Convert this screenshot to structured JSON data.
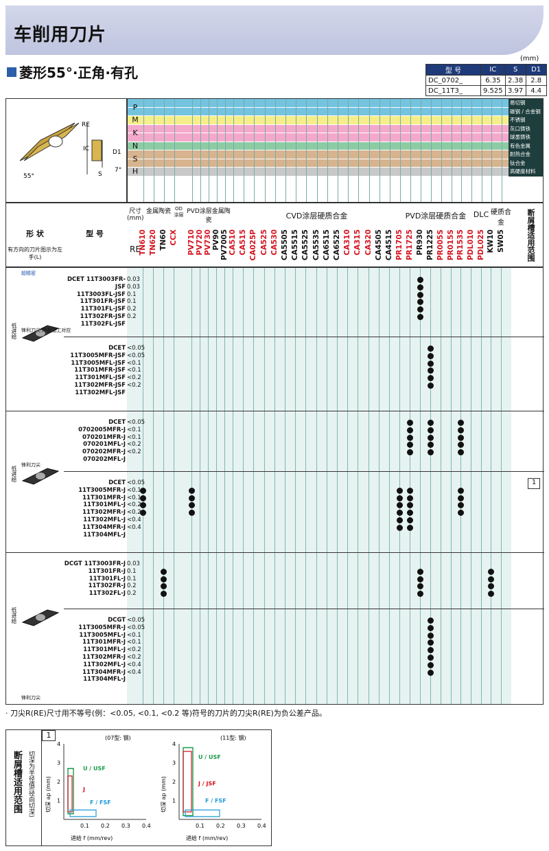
{
  "title": "车削用刀片",
  "subtitle": "菱形55°·正角·有孔",
  "unit": "(mm)",
  "spec_table": {
    "headers": [
      "型 号",
      "IC",
      "S",
      "D1"
    ],
    "rows": [
      [
        "DC_0702_",
        "6.35",
        "2.38",
        "2.8"
      ],
      [
        "DC_11T3_",
        "9.525",
        "3.97",
        "4.4"
      ]
    ]
  },
  "drawing_labels": {
    "re": "RE",
    "ic": "IC",
    "d1": "D1",
    "s": "S",
    "angle1": "55°",
    "angle2": "7°"
  },
  "materials": [
    {
      "code": "P",
      "names": [
        "易切钢",
        "碳钢 / 合金钢"
      ],
      "color": "#74c3df"
    },
    {
      "code": "M",
      "names": [
        "不锈钢"
      ],
      "color": "#f5ee8a"
    },
    {
      "code": "K",
      "names": [
        "灰口铸铁",
        "球墨铸铁"
      ],
      "color": "#f4a9cc"
    },
    {
      "code": "N",
      "names": [
        "有色金属"
      ],
      "color": "#8dcca3"
    },
    {
      "code": "S",
      "names": [
        "耐热合金",
        "钛合金"
      ],
      "color": "#d7b48f"
    },
    {
      "code": "H",
      "names": [
        "高硬度材料"
      ],
      "color": "#c8c8c8"
    }
  ],
  "header": {
    "shape": "形 状",
    "shape_note": "有方向的刀片图示为左手(L)",
    "model": "型 号",
    "size": "尺寸(mm)",
    "re": "RE",
    "categories": [
      "金属陶瓷",
      "OD涂层",
      "PVD涂层金属陶瓷",
      "CVD涂层硬质合金",
      "PVD涂层硬质合金",
      "DLC",
      "硬质合金"
    ],
    "last_col": "断屑槽适用范围",
    "grades": [
      "TN610",
      "TN620",
      "TN60",
      "CCX",
      "PV710",
      "PV720",
      "PV730",
      "PV90",
      "PV7005",
      "CA510",
      "CA515",
      "CA025P",
      "CA525",
      "CA530",
      "CA5505",
      "CA5515",
      "CA5525",
      "CA5535",
      "CA6515",
      "CA6525",
      "CA310",
      "CA315",
      "CA320",
      "CA4505",
      "CA4515",
      "PR1705",
      "PR1725",
      "PR930",
      "PR1225",
      "PR005S",
      "PR015S",
      "PR1535",
      "PDL010",
      "PDL025",
      "KW10",
      "SW05"
    ],
    "grade_colors": [
      "r",
      "r",
      "k",
      "r",
      "r",
      "r",
      "r",
      "k",
      "k",
      "r",
      "r",
      "r",
      "r",
      "r",
      "k",
      "k",
      "k",
      "k",
      "k",
      "k",
      "r",
      "r",
      "r",
      "k",
      "k",
      "r",
      "r",
      "k",
      "k",
      "r",
      "r",
      "r",
      "r",
      "r",
      "k",
      "k"
    ]
  },
  "groups": [
    {
      "speed": "低进给",
      "note_top": "超精密",
      "note_bottom": "锋利刀尖·精密加工对应",
      "family": "DCET",
      "codes": [
        "11T3003FR-JSF",
        "11T3003FL-JSF",
        "11T301FR-JSF",
        "11T301FL-JSF",
        "11T302FR-JSF",
        "11T302FL-JSF"
      ],
      "re": [
        "0.03",
        "0.03",
        "0.1",
        "0.1",
        "0.2",
        "0.2"
      ]
    },
    {
      "family": "DCET",
      "codes": [
        "11T3005MFR-JSF",
        "11T3005MFL-JSF",
        "11T301MFR-JSF",
        "11T301MFL-JSF",
        "11T302MFR-JSF",
        "11T302MFL-JSF"
      ],
      "re": [
        "<0.05",
        "<0.05",
        "<0.1",
        "<0.1",
        "<0.2",
        "<0.2"
      ]
    },
    {
      "speed": "低进给",
      "note_bottom": "锋利刀尖",
      "family": "DCET",
      "codes": [
        "0702005MFR-J",
        "070201MFR-J",
        "070201MFL-J",
        "070202MFR-J",
        "070202MFL-J"
      ],
      "re": [
        "<0.05",
        "<0.1",
        "<0.1",
        "<0.2",
        "<0.2"
      ]
    },
    {
      "family": "DCET",
      "codes": [
        "11T3005MFR-J",
        "11T301MFR-J",
        "11T301MFL-J",
        "11T302MFR-J",
        "11T302MFL-J",
        "11T304MFR-J",
        "11T304MFL-J"
      ],
      "re": [
        "<0.05",
        "<0.1",
        "<0.1",
        "<0.2",
        "<0.2",
        "<0.4",
        "<0.4"
      ]
    },
    {
      "speed": "低进给",
      "family": "DCGT",
      "codes": [
        "11T3003FR-J",
        "11T301FR-J",
        "11T301FL-J",
        "11T302FR-J",
        "11T302FL-J"
      ],
      "re": [
        "0.03",
        "0.1",
        "0.1",
        "0.2",
        "0.2"
      ]
    },
    {
      "note_bottom": "锋利刀尖",
      "family": "DCGT",
      "codes": [
        "11T3005MFR-J",
        "11T3005MFL-J",
        "11T301MFR-J",
        "11T301MFL-J",
        "11T302MFR-J",
        "11T302MFL-J",
        "11T304MFR-J",
        "11T304MFL-J"
      ],
      "re": [
        "<0.05",
        "<0.05",
        "<0.1",
        "<0.1",
        "<0.2",
        "<0.2",
        "<0.4",
        "<0.4"
      ]
    }
  ],
  "range_ref": "1",
  "footnote": "· 刀尖R(RE)尺寸用不等号(例：<0.05, <0.1, <0.2 等)符号的刀片的刀尖R(RE)为负公差产品。",
  "chip_range": {
    "title": "断屑槽适用范围",
    "side_note": "切深为半径值(径向切深)",
    "index": "1",
    "chart_data": [
      {
        "type": "area",
        "title": "(07型: 钢)",
        "xlabel": "进给 f (mm/rev)",
        "ylabel": "切深 ap (mm)",
        "xlim": [
          0,
          0.4
        ],
        "ylim": [
          0,
          4
        ],
        "xticks": [
          "0.1",
          "0.2",
          "0.3",
          "0.4"
        ],
        "yticks": [
          "1",
          "2",
          "3",
          "4"
        ],
        "series": [
          {
            "name": "U / USF"
          },
          {
            "name": "J"
          },
          {
            "name": "F / FSF"
          }
        ]
      },
      {
        "type": "area",
        "title": "(11型: 钢)",
        "xlabel": "进给 f (mm/rev)",
        "ylabel": "切深 ap (mm)",
        "xlim": [
          0,
          0.4
        ],
        "ylim": [
          0,
          4
        ],
        "xticks": [
          "0.1",
          "0.2",
          "0.3",
          "0.4"
        ],
        "yticks": [
          "1",
          "2",
          "3",
          "4"
        ],
        "series": [
          {
            "name": "U / USF"
          },
          {
            "name": "J / JSF"
          },
          {
            "name": "F / FSF"
          }
        ]
      }
    ]
  }
}
